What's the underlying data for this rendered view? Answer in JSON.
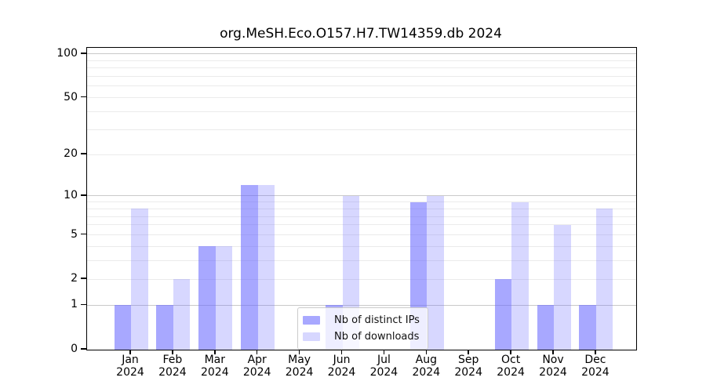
{
  "figure": {
    "title": "org.MeSH.Eco.O157.H7.TW14359.db 2024"
  },
  "chart_data": {
    "type": "bar",
    "title": "org.MeSH.Eco.O157.H7.TW14359.db 2024",
    "categories": [
      "Jan",
      "Feb",
      "Mar",
      "Apr",
      "May",
      "Jun",
      "Jul",
      "Aug",
      "Sep",
      "Oct",
      "Nov",
      "Dec"
    ],
    "category_year": "2024",
    "series": [
      {
        "name": "Nb of distinct IPs",
        "color_base": "#6666FF",
        "alpha": 0.57,
        "values": [
          1,
          1,
          4,
          12,
          0,
          1,
          0,
          9,
          0,
          2,
          1,
          1
        ]
      },
      {
        "name": "Nb of downloads",
        "color_base": "#6666FF",
        "alpha": 0.26,
        "values": [
          8,
          2,
          4,
          12,
          0,
          10,
          0,
          10,
          0,
          9,
          6,
          8
        ]
      }
    ],
    "xlabel": "",
    "ylabel": "",
    "yscale": "log1p",
    "ylim": [
      0,
      110
    ],
    "yticks": [
      0,
      1,
      2,
      5,
      10,
      20,
      50,
      100
    ],
    "major_gridlines": [
      1,
      10,
      100
    ],
    "minor_gridlines": [
      2,
      3,
      4,
      5,
      6,
      7,
      8,
      9,
      20,
      30,
      40,
      50,
      60,
      70,
      80,
      90
    ],
    "grid": true,
    "legend_position": "lower-center-inside"
  },
  "legend": {
    "items": [
      {
        "label": "Nb of distinct IPs"
      },
      {
        "label": "Nb of downloads"
      }
    ]
  },
  "colors": {
    "bar_distinct_ips_on_white": "#A8A8FF",
    "bar_downloads_on_white": "#D8D8FF",
    "grid_major": "#c9c9c9",
    "grid_minor": "#ebebeb",
    "axis": "#000000",
    "legend_border": "#cccccc"
  }
}
